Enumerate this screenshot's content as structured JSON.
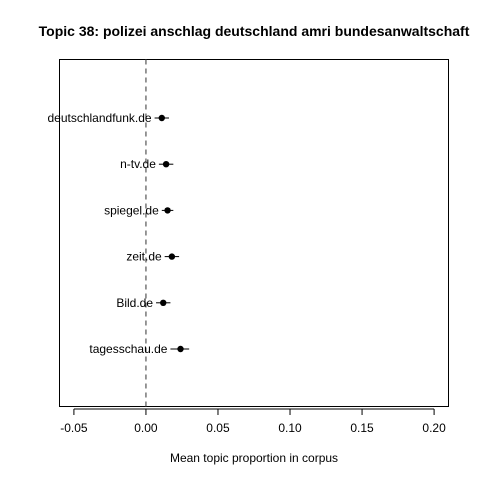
{
  "chart_data": {
    "type": "scatter",
    "title": "Topic 38: polizei anschlag deutschland amri bundesanwaltschaft",
    "xlabel": "Mean topic proportion in corpus",
    "ylabel": "",
    "xlim": [
      -0.06,
      0.21
    ],
    "x_ticks": [
      "-0.05",
      "0.00",
      "0.05",
      "0.10",
      "0.15",
      "0.20"
    ],
    "reference_line": 0,
    "reference_line_style": "dashed",
    "grid": false,
    "legend": "none",
    "error_bars": "horizontal",
    "marker_color": "#000000",
    "categories": [
      "deutschlandfunk.de",
      "n-tv.de",
      "spiegel.de",
      "zeit.de",
      "Bild.de",
      "tagesschau.de"
    ],
    "series": [
      {
        "points": [
          {
            "label": "deutschlandfunk.de",
            "mean": 0.011,
            "lower": 0.006,
            "upper": 0.016
          },
          {
            "label": "n-tv.de",
            "mean": 0.014,
            "lower": 0.009,
            "upper": 0.019
          },
          {
            "label": "spiegel.de",
            "mean": 0.015,
            "lower": 0.011,
            "upper": 0.019
          },
          {
            "label": "zeit.de",
            "mean": 0.018,
            "lower": 0.013,
            "upper": 0.023
          },
          {
            "label": "Bild.de",
            "mean": 0.012,
            "lower": 0.007,
            "upper": 0.017
          },
          {
            "label": "tagesschau.de",
            "mean": 0.024,
            "lower": 0.017,
            "upper": 0.03
          }
        ]
      }
    ]
  }
}
